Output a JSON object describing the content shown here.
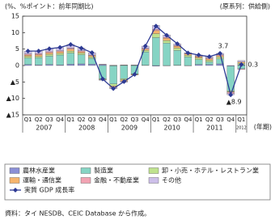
{
  "chart_data": {
    "type": "stacked-bar-line",
    "y_label": "(%、%ポイント：前年同期比)",
    "subtitle": "(原系列：供給側)",
    "x_label": "(年期)",
    "note": "資料：タイ NESDB、CEIC Database から作成。",
    "categories": [
      "Q1",
      "Q2",
      "Q3",
      "Q4",
      "Q1",
      "Q2",
      "Q3",
      "Q4",
      "Q1",
      "Q2",
      "Q3",
      "Q4",
      "Q1",
      "Q2",
      "Q3",
      "Q4",
      "Q1",
      "Q2",
      "Q3",
      "Q4",
      "Q1"
    ],
    "years": [
      "2007",
      "2008",
      "2009",
      "2010",
      "2011",
      "2012"
    ],
    "ylim": [
      -15,
      15
    ],
    "yticks": [
      15,
      10,
      5,
      0,
      {
        "value": -5,
        "label": "▲5"
      },
      {
        "value": -10,
        "label": "▲10"
      },
      {
        "value": -15,
        "label": "▲15"
      }
    ],
    "series": [
      {
        "name": "農林水産業",
        "color": "#8b8fd6",
        "values": [
          0.3,
          0.2,
          0.3,
          0.2,
          0.4,
          0.5,
          0.4,
          0.3,
          -0.1,
          0.1,
          0.0,
          0.1,
          -0.2,
          -0.1,
          0.1,
          -0.1,
          0.3,
          0.3,
          0.5,
          -0.2,
          0.2
        ]
      },
      {
        "name": "製造業",
        "color": "#86d4c4",
        "values": [
          2.0,
          2.2,
          2.6,
          3.0,
          3.4,
          2.8,
          1.8,
          -4.0,
          -5.5,
          -4.0,
          -2.5,
          4.0,
          8.5,
          6.8,
          4.5,
          2.6,
          1.5,
          0.8,
          1.5,
          -7.5,
          -1.0
        ]
      },
      {
        "name": "卸・小売・ホテル・レストラン業",
        "color": "#bfe28e",
        "values": [
          0.5,
          0.4,
          0.5,
          0.5,
          0.6,
          0.5,
          0.4,
          -0.2,
          -0.6,
          -0.4,
          -0.2,
          0.5,
          1.2,
          0.8,
          0.7,
          0.5,
          0.5,
          0.5,
          0.6,
          -0.3,
          0.5
        ]
      },
      {
        "name": "運輸・通信業",
        "color": "#f6b46e",
        "values": [
          0.4,
          0.5,
          0.5,
          0.5,
          0.6,
          0.4,
          0.4,
          -0.1,
          -0.5,
          -0.4,
          -0.2,
          0.4,
          0.9,
          0.7,
          0.6,
          0.4,
          0.4,
          0.4,
          0.4,
          -0.1,
          0.4
        ]
      },
      {
        "name": "金融・不動産業",
        "color": "#f2a3b3",
        "values": [
          0.3,
          0.3,
          0.3,
          0.3,
          0.3,
          0.3,
          0.2,
          0.1,
          0.1,
          0.1,
          0.1,
          0.2,
          0.4,
          0.3,
          0.2,
          0.2,
          0.2,
          0.3,
          0.3,
          -0.4,
          -0.2
        ]
      },
      {
        "name": "その他",
        "color": "#cdbfe9",
        "values": [
          0.9,
          0.8,
          0.9,
          1.0,
          1.1,
          0.8,
          0.7,
          -0.2,
          -0.4,
          -0.3,
          0.1,
          0.7,
          1.2,
          0.7,
          0.5,
          0.2,
          0.3,
          0.4,
          0.4,
          -0.4,
          0.4
        ]
      }
    ],
    "line": {
      "name": "実質 GDP 成長率",
      "color": "#2d3a94",
      "values": [
        4.4,
        4.4,
        5.1,
        5.5,
        6.4,
        5.3,
        3.9,
        -4.1,
        -7.0,
        -4.9,
        -2.7,
        5.9,
        12.0,
        9.2,
        6.6,
        3.8,
        3.2,
        2.7,
        3.7,
        -8.9,
        0.3
      ],
      "value_labels": [
        null,
        null,
        null,
        null,
        null,
        null,
        null,
        null,
        null,
        null,
        null,
        null,
        null,
        null,
        null,
        null,
        null,
        null,
        "3.7",
        "▲8.9",
        "0.3"
      ]
    }
  }
}
